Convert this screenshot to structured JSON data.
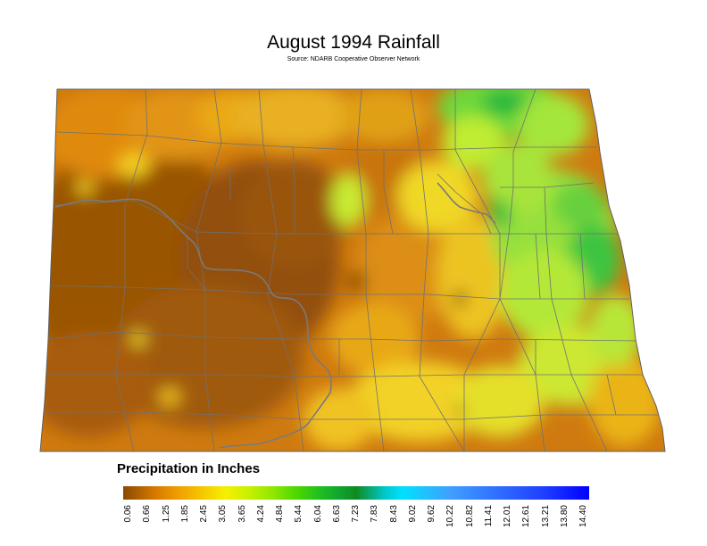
{
  "title": "August 1994 Rainfall",
  "source": "Source: NDARB Cooperative Observer Network",
  "legend": {
    "title": "Precipitation in Inches",
    "ticks": [
      "0.06",
      "0.66",
      "1.25",
      "1.85",
      "2.45",
      "3.05",
      "3.65",
      "4.24",
      "4.84",
      "5.44",
      "6.04",
      "6.63",
      "7.23",
      "7.83",
      "8.43",
      "9.02",
      "9.62",
      "10.22",
      "10.82",
      "11.41",
      "12.01",
      "12.61",
      "13.21",
      "13.80",
      "14.40"
    ],
    "colors": [
      "#8a4a00",
      "#d87a00",
      "#f0a000",
      "#f5c800",
      "#f5f000",
      "#c8f000",
      "#90e800",
      "#50d800",
      "#20c020",
      "#10a030",
      "#108a20",
      "#00c8c8",
      "#00e0ff",
      "#40a0ff",
      "#3070ff",
      "#2040ff",
      "#0000ff"
    ]
  },
  "map": {
    "colors": {
      "dark_brown": "#8f4f06",
      "brown": "#b86410",
      "orange": "#d8820c",
      "light_orange": "#eea010",
      "yellow": "#f2d020",
      "yellow_green": "#d8ec2a",
      "light_green": "#a8e838",
      "green": "#5cd438",
      "dark_green": "#22b43a",
      "county_line": "#707070",
      "river": "#808080"
    }
  }
}
